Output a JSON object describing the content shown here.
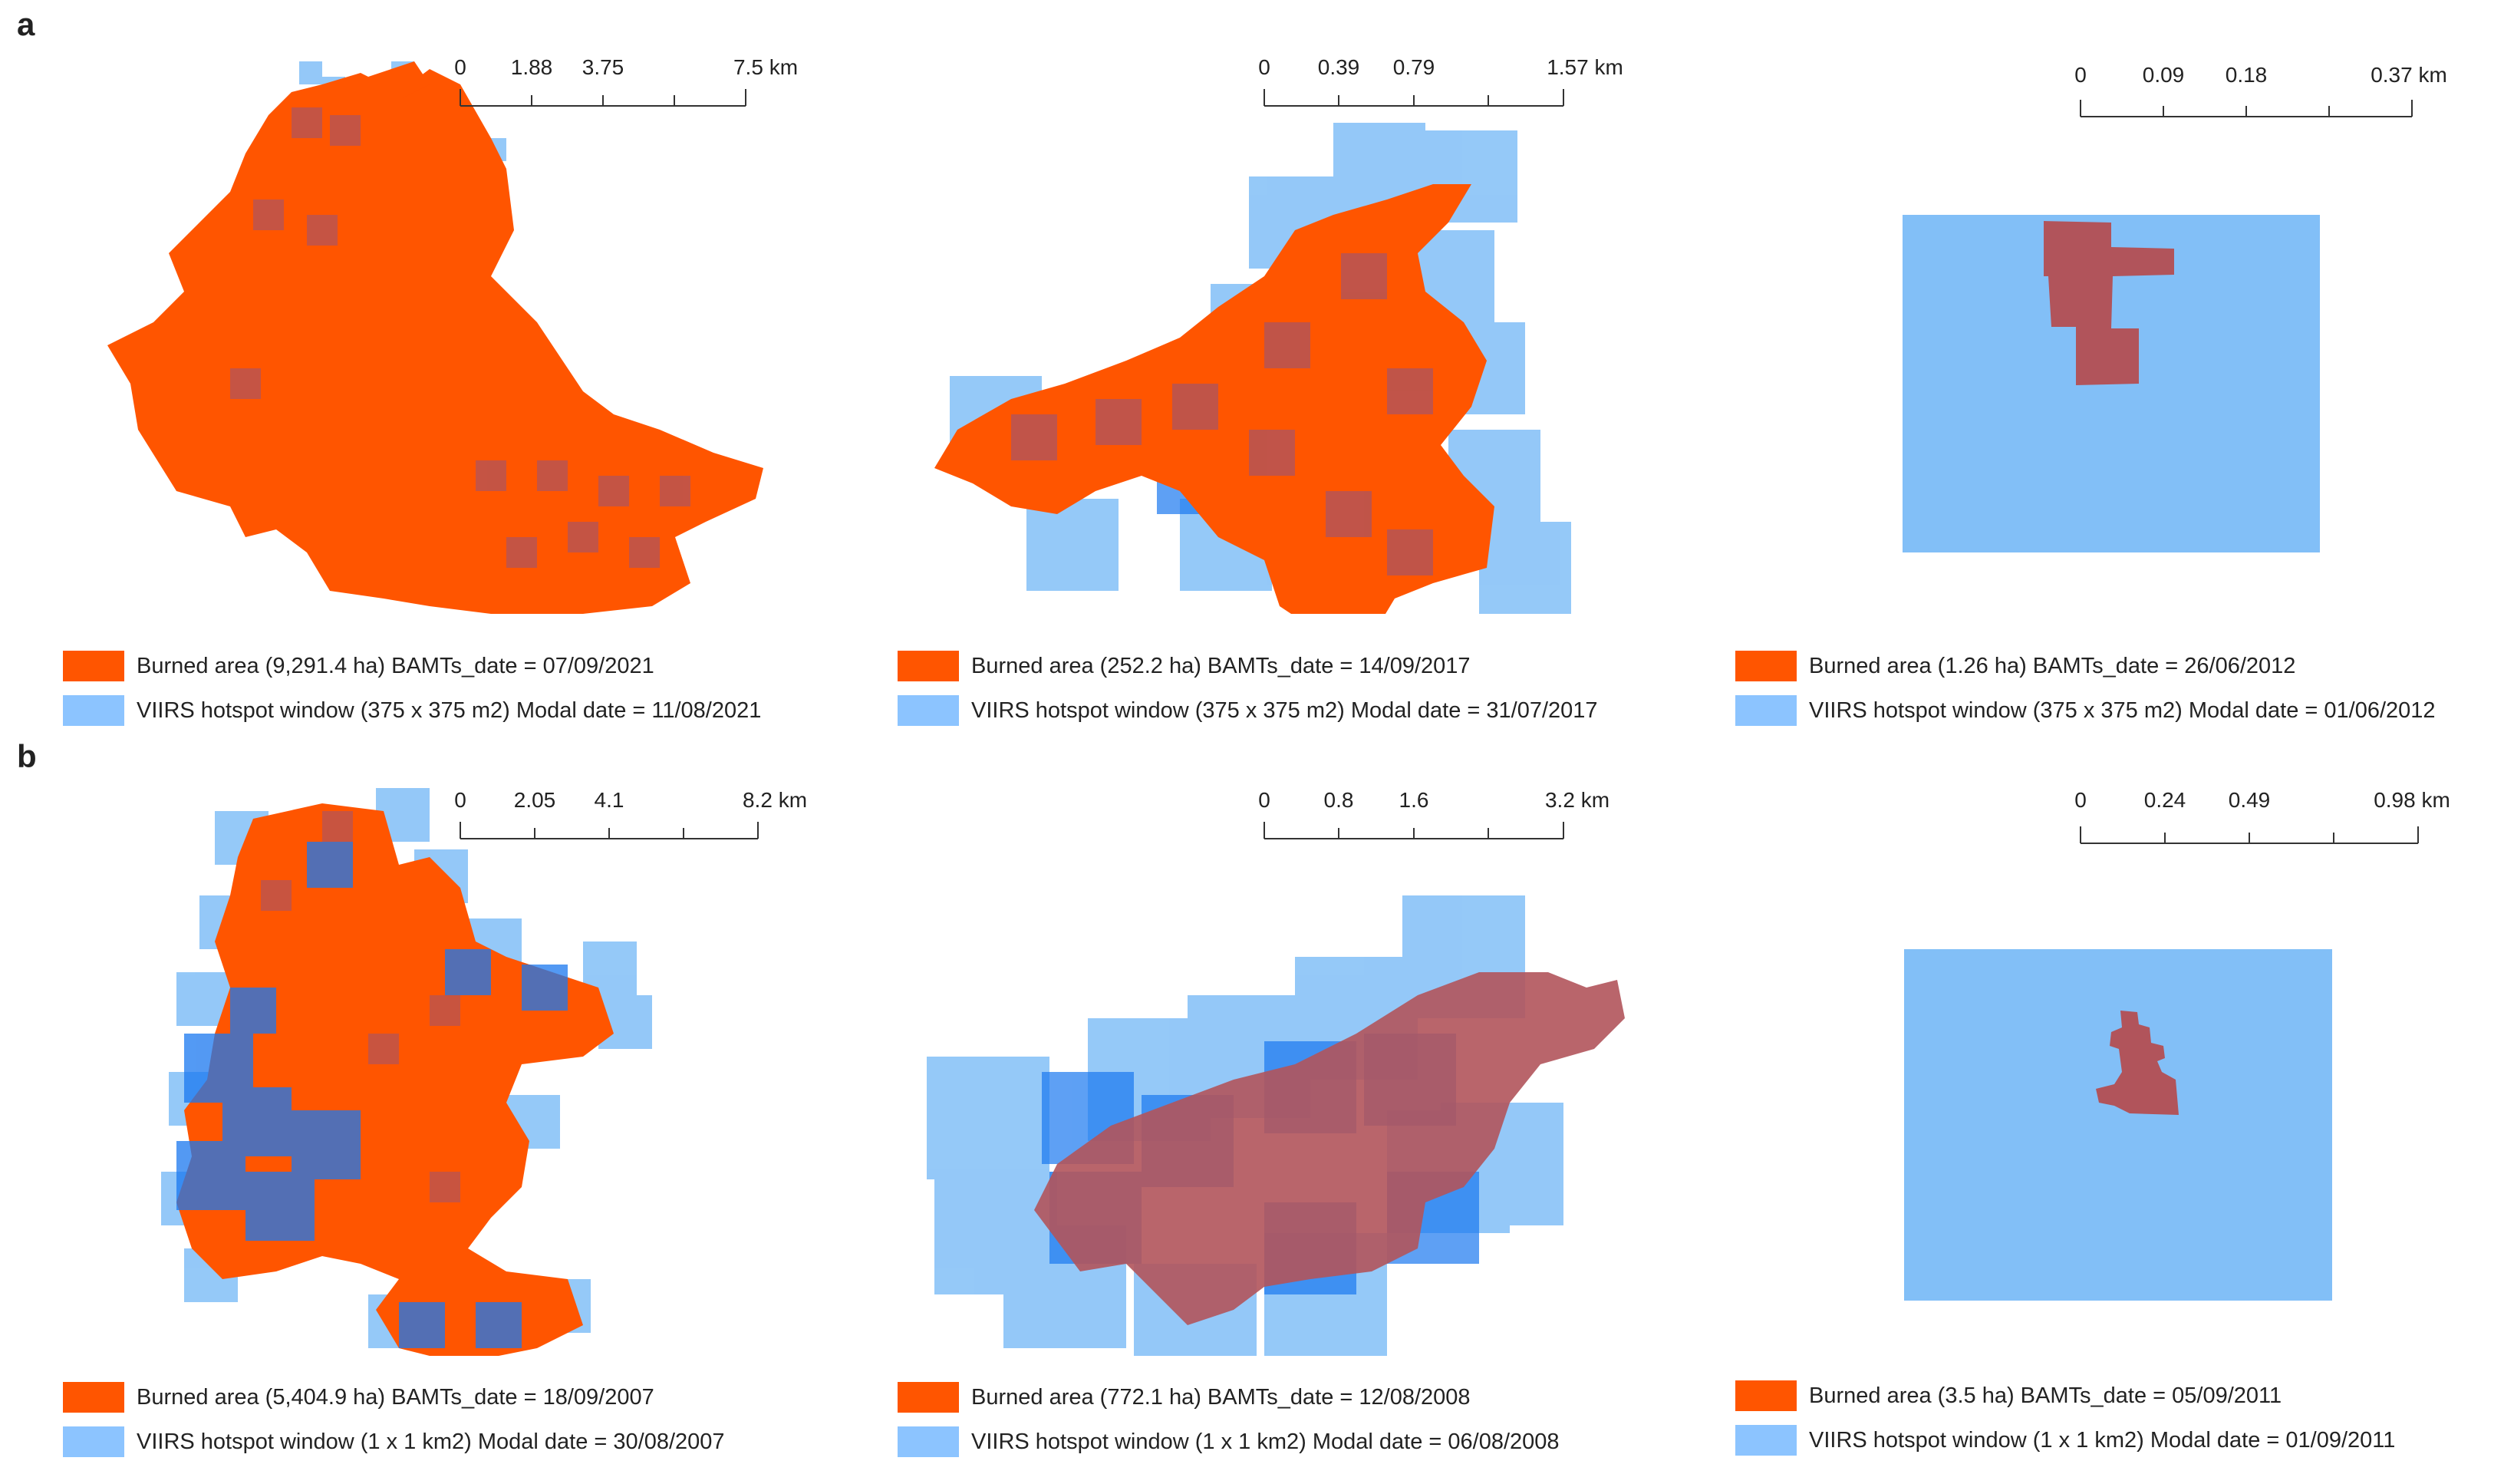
{
  "row_labels": [
    "a",
    "b"
  ],
  "colors": {
    "burned": "#ff5500",
    "viirs": "#82bff7",
    "viirs_dark": "#1a78f0",
    "overlap": "#b1545b"
  },
  "panels": [
    {
      "id": "a1",
      "scale": {
        "ticks": [
          "0",
          "1.88",
          "3.75",
          "7.5 km"
        ]
      },
      "legend": {
        "burned": "Burned area (9,291.4 ha)  BAMTs_date = 07/09/2021",
        "viirs": "VIIRS hotspot window (375 x 375 m2) Modal date = 11/08/2021"
      }
    },
    {
      "id": "a2",
      "scale": {
        "ticks": [
          "0",
          "0.39",
          "0.79",
          "1.57 km"
        ]
      },
      "legend": {
        "burned": "Burned area (252.2 ha)  BAMTs_date = 14/09/2017",
        "viirs": "VIIRS hotspot window (375 x 375 m2) Modal date = 31/07/2017"
      }
    },
    {
      "id": "a3",
      "scale": {
        "ticks": [
          "0",
          "0.09",
          "0.18",
          "0.37 km"
        ]
      },
      "legend": {
        "burned": "Burned area (1.26 ha)  BAMTs_date = 26/06/2012",
        "viirs": "VIIRS hotspot window (375 x 375 m2) Modal date = 01/06/2012"
      }
    },
    {
      "id": "b1",
      "scale": {
        "ticks": [
          "0",
          "2.05",
          "4.1",
          "8.2 km"
        ]
      },
      "legend": {
        "burned": "Burned area (5,404.9 ha)  BAMTs_date = 18/09/2007",
        "viirs": "VIIRS hotspot window (1 x 1 km2) Modal date = 30/08/2007"
      }
    },
    {
      "id": "b2",
      "scale": {
        "ticks": [
          "0",
          "0.8",
          "1.6",
          "3.2 km"
        ]
      },
      "legend": {
        "burned": "Burned area (772.1 ha)  BAMTs_date = 12/08/2008",
        "viirs": "VIIRS hotspot window (1 x 1 km2) Modal date = 06/08/2008"
      }
    },
    {
      "id": "b3",
      "scale": {
        "ticks": [
          "0",
          "0.24",
          "0.49",
          "0.98 km"
        ]
      },
      "legend": {
        "burned": "Burned area (3.5 ha)  BAMTs_date = 05/09/2011",
        "viirs": "VIIRS hotspot window (1 x 1 km2) Modal date = 01/09/2011"
      }
    }
  ]
}
